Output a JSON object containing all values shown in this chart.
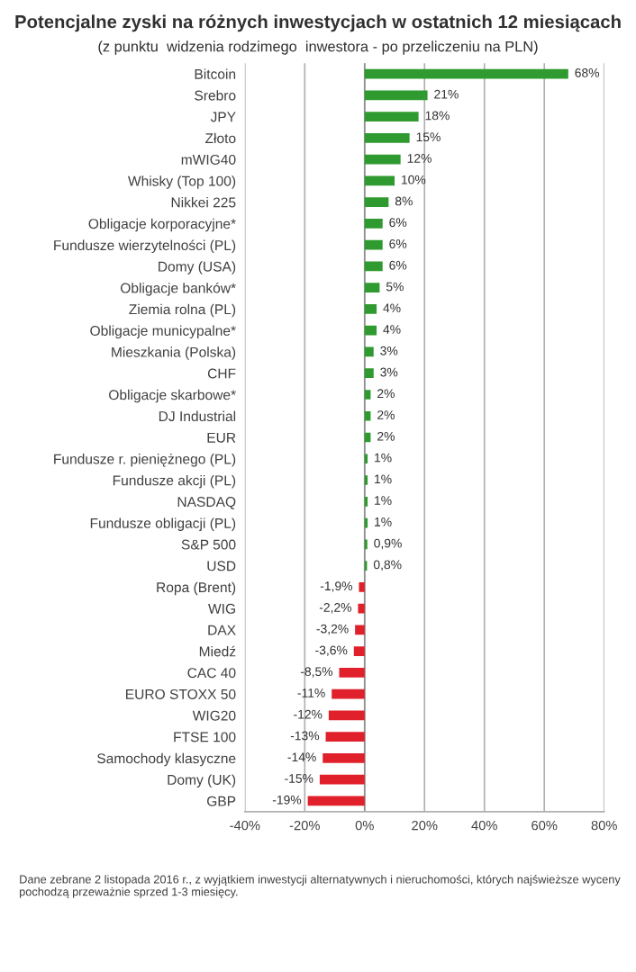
{
  "chart_data": {
    "type": "bar",
    "orientation": "horizontal",
    "title": "Potencjalne zyski na różnych inwestycjach w ostatnich 12 miesiącach",
    "subtitle": "(z punktu  widzenia rodzimego  inwestora - po przeliczeniu na PLN)",
    "categories": [
      "Bitcoin",
      "Srebro",
      "JPY",
      "Złoto",
      "mWIG40",
      "Whisky (Top 100)",
      "Nikkei 225",
      "Obligacje korporacyjne*",
      "Fundusze wierzytelności (PL)",
      "Domy (USA)",
      "Obligacje banków*",
      "Ziemia rolna (PL)",
      "Obligacje municypalne*",
      "Mieszkania (Polska)",
      "CHF",
      "Obligacje skarbowe*",
      "DJ Industrial",
      "EUR",
      "Fundusze r. pieniężnego (PL)",
      "Fundusze akcji (PL)",
      "NASDAQ",
      "Fundusze obligacji (PL)",
      "S&P 500",
      "USD",
      "Ropa (Brent)",
      "WIG",
      "DAX",
      "Miedź",
      "CAC 40",
      "EURO STOXX 50",
      "WIG20",
      "FTSE 100",
      "Samochody klasyczne",
      "Domy (UK)",
      "GBP"
    ],
    "values": [
      68,
      21,
      18,
      15,
      12,
      10,
      8,
      6,
      6,
      6,
      5,
      4,
      4,
      3,
      3,
      2,
      2,
      2,
      1,
      1,
      1,
      1,
      0.9,
      0.8,
      -1.9,
      -2.2,
      -3.2,
      -3.6,
      -8.5,
      -11,
      -12,
      -13,
      -14,
      -15,
      -19
    ],
    "value_labels": [
      "68%",
      "21%",
      "18%",
      "15%",
      "12%",
      "10%",
      "8%",
      "6%",
      "6%",
      "6%",
      "5%",
      "4%",
      "4%",
      "3%",
      "3%",
      "2%",
      "2%",
      "2%",
      "1%",
      "1%",
      "1%",
      "1%",
      "0,9%",
      "0,8%",
      "-1,9%",
      "-2,2%",
      "-3,2%",
      "-3,6%",
      "-8,5%",
      "-11%",
      "-12%",
      "-13%",
      "-14%",
      "-15%",
      "-19%"
    ],
    "colors": [
      "#2f9a2f",
      "#2f9a2f",
      "#2f9a2f",
      "#2f9a2f",
      "#2f9a2f",
      "#2f9a2f",
      "#2f9a2f",
      "#2f9a2f",
      "#2f9a2f",
      "#2f9a2f",
      "#2f9a2f",
      "#2f9a2f",
      "#2f9a2f",
      "#2f9a2f",
      "#2f9a2f",
      "#2f9a2f",
      "#2f9a2f",
      "#2f9a2f",
      "#2f9a2f",
      "#2f9a2f",
      "#2f9a2f",
      "#2f9a2f",
      "#2f9a2f",
      "#2f9a2f",
      "#e0202a",
      "#e0202a",
      "#e0202a",
      "#e0202a",
      "#e0202a",
      "#e0202a",
      "#e0202a",
      "#e0202a",
      "#e0202a",
      "#e0202a",
      "#e0202a"
    ],
    "xlim": [
      -40,
      80
    ],
    "xticks": [
      {
        "value": -40,
        "label": "-40%"
      },
      {
        "value": -20,
        "label": "-20%"
      },
      {
        "value": 0,
        "label": "0%"
      },
      {
        "value": 20,
        "label": "20%"
      },
      {
        "value": 40,
        "label": "40%"
      },
      {
        "value": 60,
        "label": "60%"
      },
      {
        "value": 80,
        "label": "80%"
      }
    ],
    "grid": "x",
    "annotations": [
      "Dane zebrane 2 listopada 2016 r., z wyjątkiem inwestycji alternatywnych i nieruchomości, których najświeższe wyceny pochodzą przeważnie sprzed 1-3 miesięcy."
    ]
  }
}
